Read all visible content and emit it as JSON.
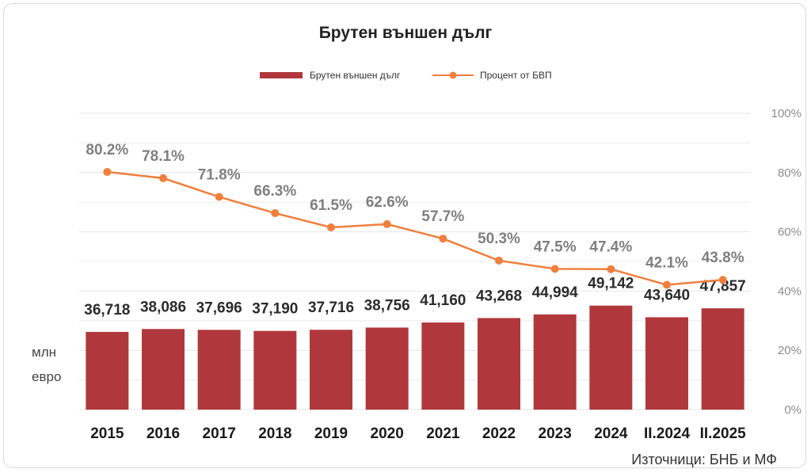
{
  "chart_data": {
    "type": "bar",
    "title": "Брутен външен дълг",
    "categories": [
      "2015",
      "2016",
      "2017",
      "2018",
      "2019",
      "2020",
      "2021",
      "2022",
      "2023",
      "2024",
      "II.2024",
      "II.2025"
    ],
    "series": [
      {
        "name": "Брутен външен дълг",
        "type": "bar",
        "axis": "left",
        "values": [
          36718,
          38086,
          37696,
          37190,
          37716,
          38756,
          41160,
          43268,
          44994,
          49142,
          43640,
          47857
        ],
        "labels": [
          "36,718",
          "38,086",
          "37,696",
          "37,190",
          "37,716",
          "38,756",
          "41,160",
          "43,268",
          "44,994",
          "49,142",
          "43,640",
          "47,857"
        ],
        "color": "#b0383c"
      },
      {
        "name": "Процент от БВП",
        "type": "line",
        "axis": "right",
        "values": [
          80.2,
          78.1,
          71.8,
          66.3,
          61.5,
          62.6,
          57.7,
          50.3,
          47.5,
          47.4,
          42.1,
          43.8
        ],
        "labels": [
          "80.2%",
          "78.1%",
          "71.8%",
          "66.3%",
          "61.5%",
          "62.6%",
          "57.7%",
          "50.3%",
          "47.5%",
          "47.4%",
          "42.1%",
          "43.8%"
        ],
        "color": "#f07f3c"
      }
    ],
    "left_axis": {
      "ylabel_lines": [
        "млн",
        "евро"
      ],
      "ylim": [
        0,
        140000
      ]
    },
    "right_axis": {
      "ylim": [
        0,
        100
      ],
      "ticks": [
        0,
        20,
        40,
        60,
        80,
        100
      ],
      "tick_labels": [
        "0%",
        "20%",
        "40%",
        "60%",
        "80%",
        "100%"
      ]
    },
    "grid": true,
    "legend_position": "top-center",
    "source": "Източници: БНБ и МФ"
  }
}
